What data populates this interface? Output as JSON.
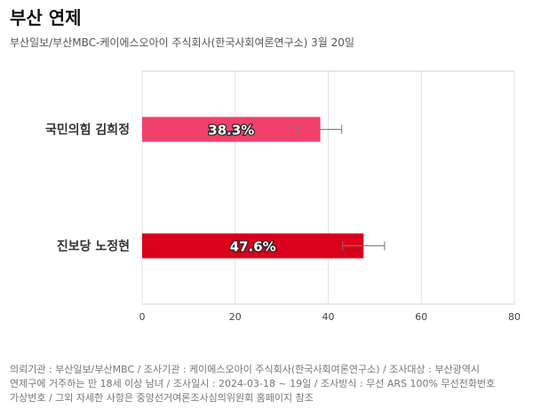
{
  "header": {
    "title": "부산 연제",
    "subtitle": "부산일보/부산MBC-케이에스오아이 주식회사(한국사회여론연구소) 3월 20일"
  },
  "chart_data": {
    "type": "bar",
    "orientation": "horizontal",
    "categories": [
      "국민의힘 김희정",
      "진보당 노정현"
    ],
    "values": [
      38.3,
      47.6
    ],
    "value_labels": [
      "38.3%",
      "47.6%"
    ],
    "error_low": [
      33.7,
      43.1
    ],
    "error_high": [
      42.9,
      52.1
    ],
    "colors": [
      "#f0406b",
      "#d9001b"
    ],
    "xlim": [
      0,
      80
    ],
    "xticks": [
      "0",
      "20",
      "40",
      "60",
      "80"
    ],
    "grid": true
  },
  "footer": {
    "lines": [
      "의뢰기관 : 부산일보/부산MBC / 조사기관 : 케이에스오아이 주식회사(한국사회여론연구소) / 조사대상 : 부산광역시",
      "연제구에 거주하는 만 18세 이상 남녀 / 조사일시 : 2024-03-18 ~ 19일 / 조사방식 : 무선 ARS 100% 무선전화번호",
      "가상번호 / 그외 자세한 사항은 중앙선거여론조사심의위원회 홈페이지 참조"
    ]
  }
}
